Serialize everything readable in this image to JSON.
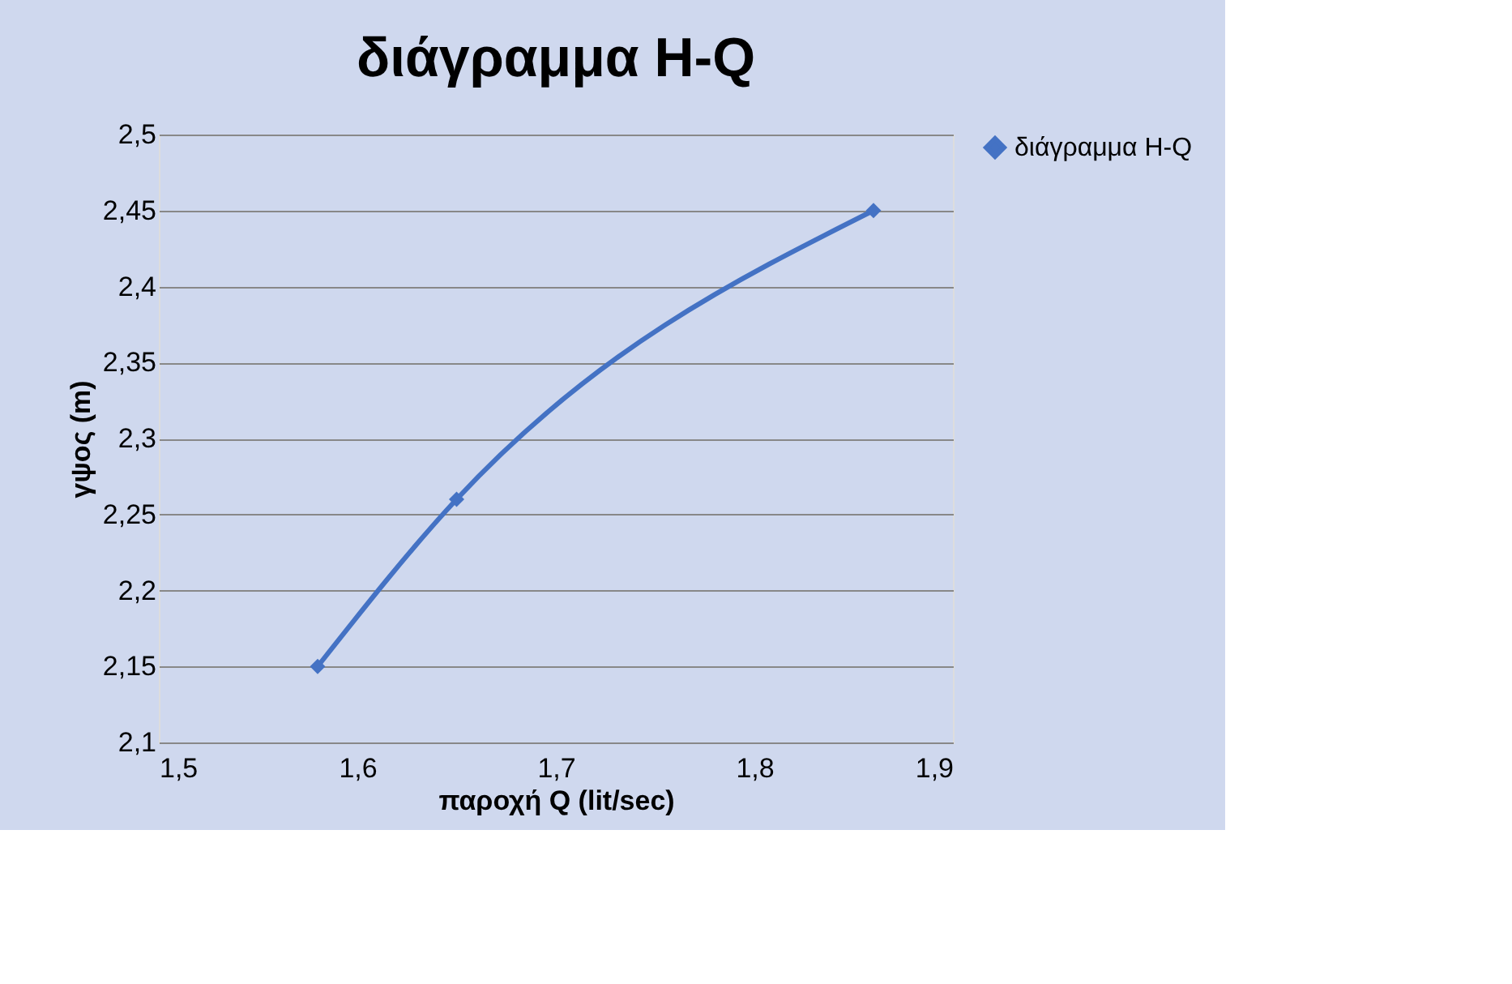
{
  "chart_data": {
    "type": "line",
    "title": "διάγραμμα H-Q",
    "xlabel": "παροχή Q (lit/sec)",
    "ylabel": "γψος (m)",
    "x": [
      1.58,
      1.65,
      1.86
    ],
    "series": [
      {
        "name": "διάγραμμα H-Q",
        "color": "#4472c4",
        "values": [
          2.15,
          2.26,
          2.45
        ]
      }
    ],
    "xlim": [
      1.5,
      1.9
    ],
    "xticks": [
      {
        "value": 1.5,
        "label": "1,5"
      },
      {
        "value": 1.6,
        "label": "1,6"
      },
      {
        "value": 1.7,
        "label": "1,7"
      },
      {
        "value": 1.8,
        "label": "1,8"
      },
      {
        "value": 1.9,
        "label": "1,9"
      }
    ],
    "ylim": [
      2.1,
      2.5
    ],
    "yticks": [
      {
        "value": 2.1,
        "label": "2,1"
      },
      {
        "value": 2.15,
        "label": "2,15"
      },
      {
        "value": 2.2,
        "label": "2,2"
      },
      {
        "value": 2.25,
        "label": "2,25"
      },
      {
        "value": 2.3,
        "label": "2,3"
      },
      {
        "value": 2.35,
        "label": "2,35"
      },
      {
        "value": 2.4,
        "label": "2,4"
      },
      {
        "value": 2.45,
        "label": "2,45"
      },
      {
        "value": 2.5,
        "label": "2,5"
      }
    ],
    "grid": "y",
    "legend": "right",
    "marker": "diamond",
    "line_style": "solid"
  }
}
